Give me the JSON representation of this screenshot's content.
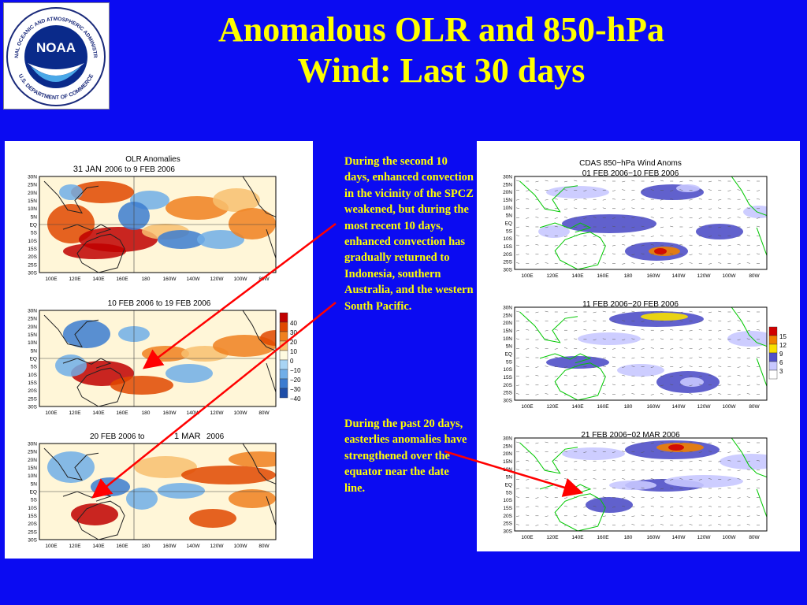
{
  "header": {
    "title_line1": "Anomalous OLR and 850-hPa",
    "title_line2": "Wind: Last 30 days",
    "logo": {
      "agency_ring": "NATIONAL OCEANIC AND ATMOSPHERIC ADMINISTRATION",
      "dept_ring": "U.S. DEPARTMENT OF COMMERCE",
      "wordmark": "NOAA"
    }
  },
  "olr": {
    "title": "OLR Anomalies",
    "map1_label_a": "31 JAN",
    "map1_label_b": "2006  to  9 FEB  2006",
    "map2_label": "10 FEB  2006  to  19 FEB  2006",
    "map3_label_a": "20 FEB  2006  to",
    "map3_label_b": "1 MAR",
    "map3_label_c": "2006",
    "legend": [
      "40",
      "30",
      "20",
      "10",
      "0",
      "−10",
      "−20",
      "−30",
      "−40"
    ],
    "legend_colors": [
      "#c00000",
      "#e04800",
      "#f08020",
      "#f8c070",
      "#fffbe0",
      "#a8d4f4",
      "#70aee8",
      "#3c7cd0",
      "#1e4ea8"
    ]
  },
  "wind": {
    "title": "CDAS 850−hPa Wind Anoms",
    "map1_label": "01 FEB 2006−10 FEB 2006",
    "map2_label": "11 FEB 2006−20 FEB 2006",
    "map3_label": "21 FEB 2006−02 MAR 2006",
    "legend": [
      "15",
      "12",
      "9",
      "6",
      "3"
    ],
    "legend_colors": [
      "#d00000",
      "#f08000",
      "#f8e000",
      "#5050c8",
      "#c8c8ff"
    ]
  },
  "axes": {
    "lat": [
      "30N",
      "25N",
      "20N",
      "15N",
      "10N",
      "5N",
      "EQ",
      "5S",
      "10S",
      "15S",
      "20S",
      "25S",
      "30S"
    ],
    "lon": [
      "100E",
      "120E",
      "140E",
      "160E",
      "180",
      "160W",
      "140W",
      "120W",
      "100W",
      "80W"
    ]
  },
  "notes": {
    "note1": "During the second 10 days, enhanced convection in the vicinity of the SPCZ weakened, but during the most recent 10 days, enhanced convection has gradually returned to Indonesia, southern Australia, and the western South Pacific.",
    "note2": "During the past 20 days, easterlies anomalies have strengthened over the equator near the date line."
  },
  "colors": {
    "background": "#0b0bf2",
    "title": "#ffff00",
    "arrow": "#ff0000"
  }
}
